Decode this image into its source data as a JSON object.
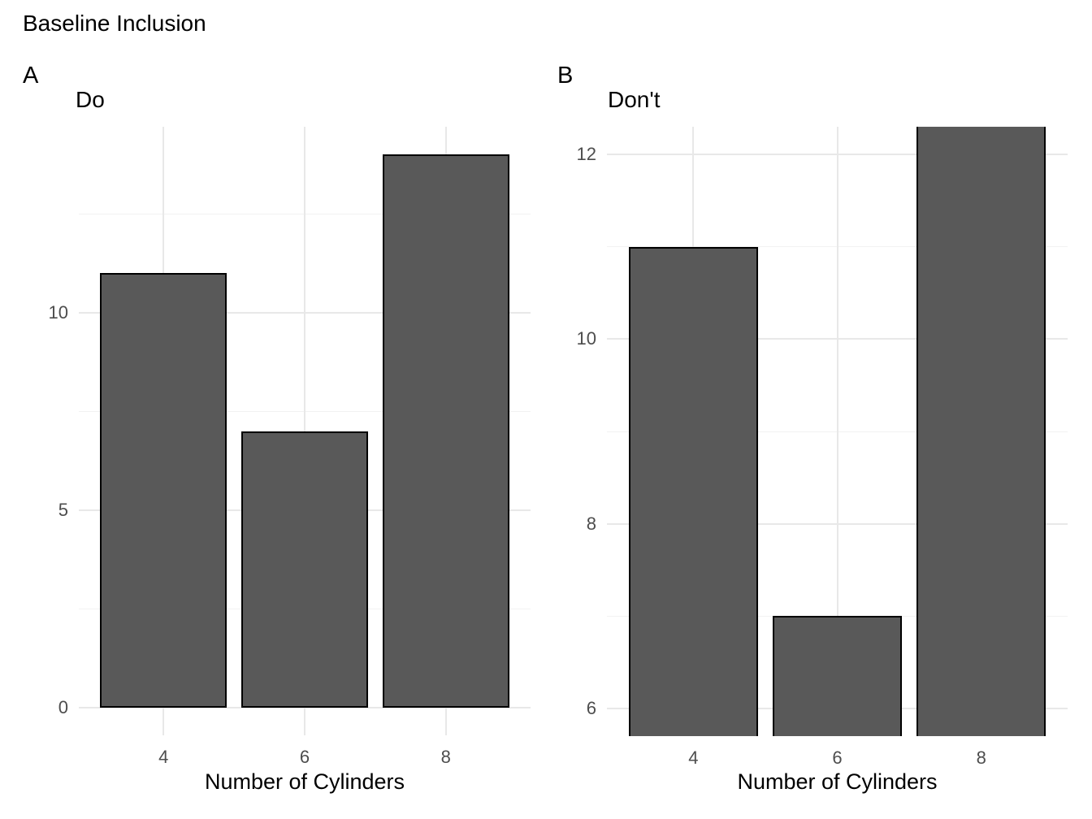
{
  "title": "Baseline Inclusion",
  "colors": {
    "background": "#ffffff",
    "bar_fill": "#595959",
    "bar_border": "#000000",
    "grid_major": "#e8e8e8",
    "grid_minor": "#f2f2f2",
    "tick_label": "#4d4d4d",
    "text": "#000000"
  },
  "chart_data": [
    {
      "type": "bar",
      "tag": "A",
      "title": "Do",
      "categories": [
        "4",
        "6",
        "8"
      ],
      "values": [
        11,
        7,
        14
      ],
      "xlabel": "Number of Cylinders",
      "ylabel": "",
      "ylim": [
        -0.7,
        14.7
      ],
      "yticks": [
        0,
        5,
        10
      ],
      "ytick_labels": [
        "0",
        "5",
        "10"
      ],
      "yticks_minor": [
        2.5,
        7.5,
        12.5
      ],
      "bar_baseline": 0,
      "grid": true,
      "legend": "none",
      "note": "full y-axis starting at zero"
    },
    {
      "type": "bar",
      "tag": "B",
      "title": "Don't",
      "categories": [
        "4",
        "6",
        "8"
      ],
      "values": [
        11,
        7,
        14
      ],
      "xlabel": "Number of Cylinders",
      "ylabel": "",
      "ylim": [
        5.7,
        12.3
      ],
      "yticks": [
        6,
        8,
        10,
        12
      ],
      "ytick_labels": [
        "6",
        "8",
        "10",
        "12"
      ],
      "yticks_minor": [
        7,
        9,
        11
      ],
      "bar_baseline": 0,
      "grid": true,
      "legend": "none",
      "note": "truncated y-axis; bars clipped at panel top and bottom"
    }
  ]
}
